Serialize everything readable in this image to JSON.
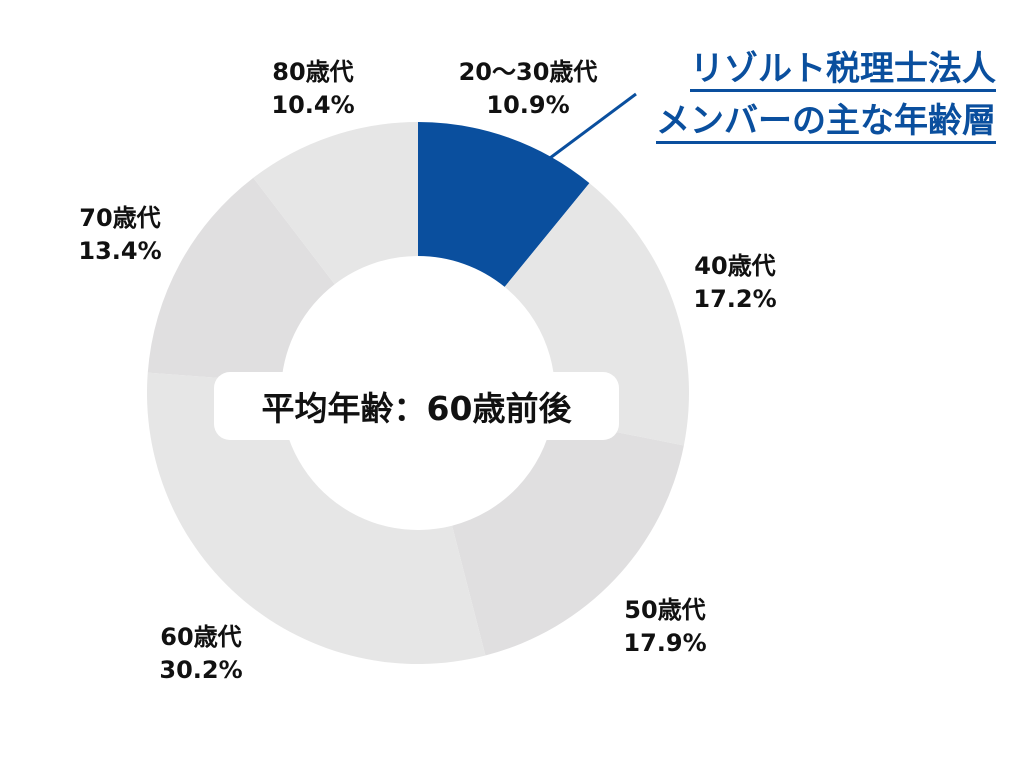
{
  "chart_data": {
    "type": "pie",
    "subtype": "donut",
    "title": "リゾルト税理士法人メンバーの主な年齢層",
    "center_text": "平均年齢：60歳前後",
    "start_angle_deg": 0,
    "direction": "clockwise",
    "categories": [
      "20〜30歳代",
      "40歳代",
      "50歳代",
      "60歳代",
      "70歳代",
      "80歳代"
    ],
    "values": [
      10.9,
      17.2,
      17.9,
      30.2,
      13.4,
      10.4
    ],
    "unit": "%",
    "highlight_index": 0,
    "legend": "none",
    "grid": false
  },
  "colors": {
    "highlight": "#0a4f9e",
    "slice_gray_a": "#e6e6e6",
    "slice_gray_b": "#e0dfe0",
    "text": "#111111",
    "callout": "#0a4f9e"
  },
  "labels": [
    {
      "name": "20〜30歳代",
      "pct": "10.9%"
    },
    {
      "name": "40歳代",
      "pct": "17.2%"
    },
    {
      "name": "50歳代",
      "pct": "17.9%"
    },
    {
      "name": "60歳代",
      "pct": "30.2%"
    },
    {
      "name": "70歳代",
      "pct": "13.4%"
    },
    {
      "name": "80歳代",
      "pct": "10.4%"
    }
  ],
  "callout": {
    "line1": "リゾルト税理士法人",
    "line2": "メンバーの主な年齢層"
  },
  "center": {
    "text": "平均年齢：60歳前後"
  }
}
